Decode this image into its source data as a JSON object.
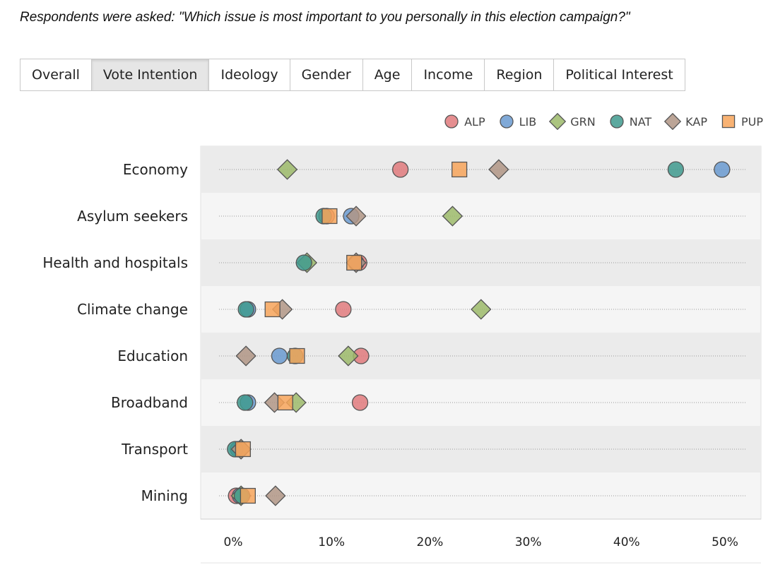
{
  "question": "Respondents were asked: \"Which issue is most important to you personally in this election campaign?\"",
  "tabs": [
    {
      "label": "Overall",
      "active": false
    },
    {
      "label": "Vote Intention",
      "active": true
    },
    {
      "label": "Ideology",
      "active": false
    },
    {
      "label": "Gender",
      "active": false
    },
    {
      "label": "Age",
      "active": false
    },
    {
      "label": "Income",
      "active": false
    },
    {
      "label": "Region",
      "active": false
    },
    {
      "label": "Political Interest",
      "active": false
    }
  ],
  "chart_data": {
    "type": "scatter",
    "title": "",
    "xlabel": "",
    "ylabel": "",
    "xlim": [
      0,
      50
    ],
    "x_ticks": [
      0,
      10,
      20,
      30,
      40,
      50
    ],
    "x_tick_labels": [
      "0%",
      "10%",
      "20%",
      "30%",
      "40%",
      "50%"
    ],
    "grid": true,
    "legend_position": "top-right",
    "categories": [
      "Economy",
      "Asylum seekers",
      "Health and hospitals",
      "Climate change",
      "Education",
      "Broadband",
      "Transport",
      "Mining"
    ],
    "series": [
      {
        "name": "ALP",
        "shape": "circle",
        "color": "#e07a7d",
        "values": [
          17,
          9.5,
          12.8,
          11.2,
          13.0,
          12.9,
          0.7,
          0.3
        ]
      },
      {
        "name": "LIB",
        "shape": "circle",
        "color": "#6a9ad0",
        "values": [
          49.7,
          12.0,
          12.5,
          1.5,
          4.7,
          1.5,
          0.5,
          0.7
        ]
      },
      {
        "name": "GRN",
        "shape": "diamond",
        "color": "#9cba6a",
        "values": [
          5.5,
          22.3,
          7.5,
          25.2,
          11.7,
          6.4,
          0.8,
          0.8
        ]
      },
      {
        "name": "NAT",
        "shape": "circle",
        "color": "#3f9a8e",
        "values": [
          45.0,
          9.2,
          7.2,
          1.3,
          6.3,
          1.2,
          0.2,
          0.9
        ]
      },
      {
        "name": "KAP",
        "shape": "diamond",
        "color": "#b09585",
        "values": [
          27.0,
          12.5,
          12.5,
          5.0,
          1.3,
          4.2,
          0.8,
          4.3
        ]
      },
      {
        "name": "PUP",
        "shape": "square",
        "color": "#f7a55a",
        "values": [
          23.0,
          9.8,
          12.3,
          4.0,
          6.5,
          5.3,
          1.0,
          1.5
        ]
      }
    ]
  }
}
